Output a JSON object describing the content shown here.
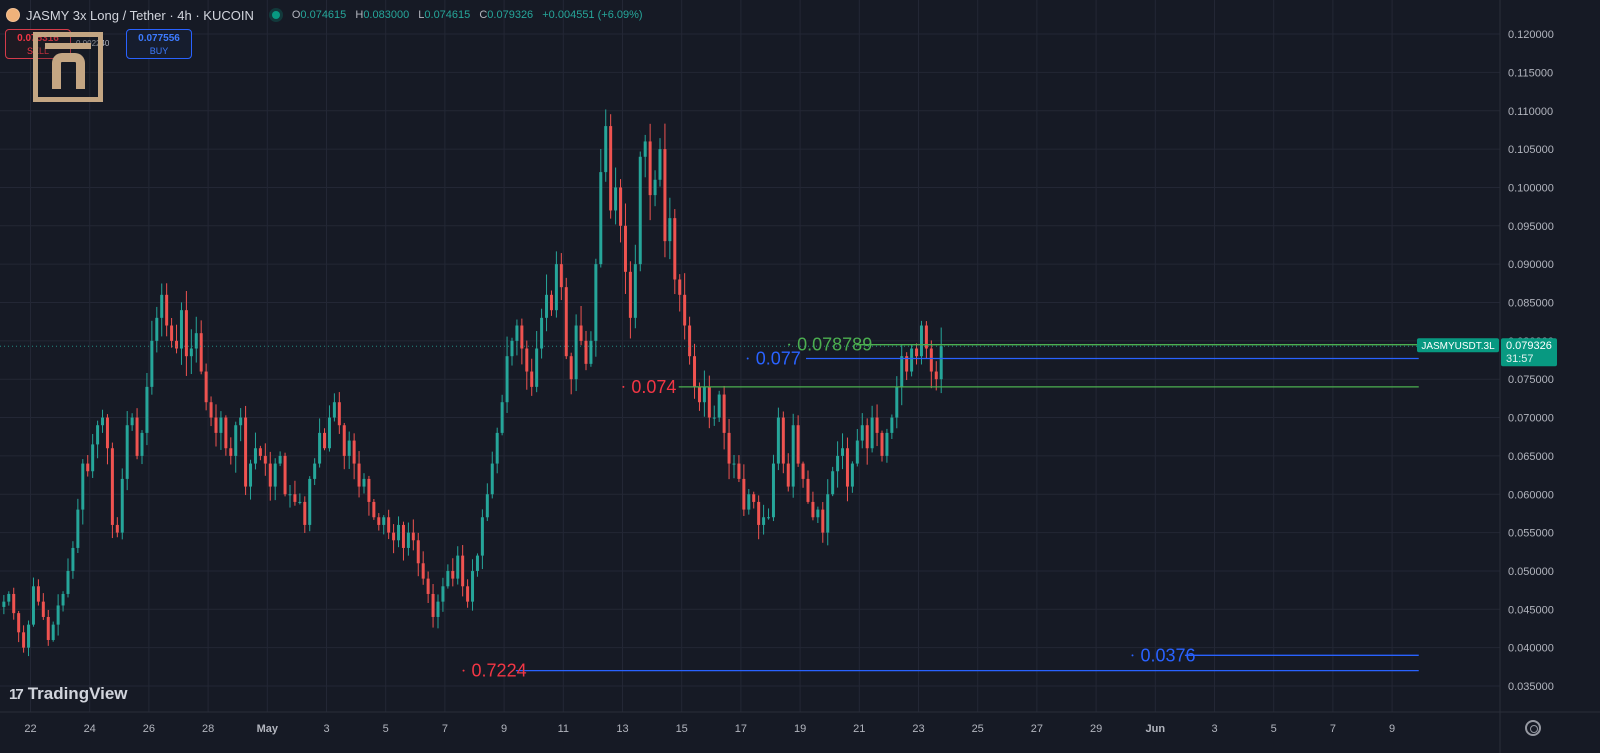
{
  "header": {
    "symbol": "JASMY 3x Long / Tether · 4h · KUCOIN",
    "ohlc": {
      "o_label": "O",
      "o": "0.074615",
      "h_label": "H",
      "h": "0.083000",
      "l_label": "L",
      "l": "0.074615",
      "c_label": "C",
      "c": "0.079326",
      "change": "+0.004551 (+6.09%)"
    }
  },
  "trade": {
    "sell_price": "0.075316",
    "sell_label": "SELL",
    "spread": "0.002240",
    "buy_price": "0.077556",
    "buy_label": "BUY"
  },
  "branding": {
    "tv_mark": "17",
    "tv_name": "TradingView"
  },
  "price_tag": {
    "symbol": "JASMYUSDT.3L",
    "price": "0.079326",
    "countdown": "31:57"
  },
  "colors": {
    "background": "#161a25",
    "up": "#26a69a",
    "down": "#ef5350",
    "level_green": "#4caf50",
    "level_blue": "#2962ff",
    "label_red": "#f23645"
  },
  "chart_data": {
    "type": "candlestick",
    "timeframe": "4h",
    "ylim": [
      0.032,
      0.122
    ],
    "y_ticks": [
      "0.035000",
      "0.040000",
      "0.045000",
      "0.050000",
      "0.055000",
      "0.060000",
      "0.065000",
      "0.070000",
      "0.075000",
      "0.080000",
      "0.085000",
      "0.090000",
      "0.095000",
      "0.100000",
      "0.105000",
      "0.110000",
      "0.115000",
      "0.120000"
    ],
    "x_ticks": [
      {
        "label": "22",
        "day": 0
      },
      {
        "label": "24",
        "day": 2
      },
      {
        "label": "26",
        "day": 4
      },
      {
        "label": "28",
        "day": 6
      },
      {
        "label": "May",
        "day": 8
      },
      {
        "label": "3",
        "day": 10
      },
      {
        "label": "5",
        "day": 12
      },
      {
        "label": "7",
        "day": 14
      },
      {
        "label": "9",
        "day": 16
      },
      {
        "label": "11",
        "day": 18
      },
      {
        "label": "13",
        "day": 20
      },
      {
        "label": "15",
        "day": 22
      },
      {
        "label": "17",
        "day": 24
      },
      {
        "label": "19",
        "day": 26
      },
      {
        "label": "21",
        "day": 28
      },
      {
        "label": "23",
        "day": 30
      },
      {
        "label": "25",
        "day": 32
      },
      {
        "label": "27",
        "day": 34
      },
      {
        "label": "29",
        "day": 36
      },
      {
        "label": "Jun",
        "day": 38
      },
      {
        "label": "3",
        "day": 40
      },
      {
        "label": "5",
        "day": 42
      },
      {
        "label": "7",
        "day": 44
      },
      {
        "label": "9",
        "day": 46
      }
    ],
    "bold_x_labels": [
      "May",
      "Jun"
    ],
    "start_day_offset": -0.9,
    "candles_per_day": 6,
    "closes": [
      0.046,
      0.047,
      0.0445,
      0.042,
      0.04,
      0.043,
      0.048,
      0.046,
      0.044,
      0.041,
      0.043,
      0.0455,
      0.047,
      0.05,
      0.053,
      0.058,
      0.064,
      0.063,
      0.0665,
      0.069,
      0.07,
      0.066,
      0.056,
      0.055,
      0.062,
      0.069,
      0.07,
      0.065,
      0.068,
      0.074,
      0.08,
      0.083,
      0.086,
      0.082,
      0.08,
      0.079,
      0.084,
      0.078,
      0.079,
      0.081,
      0.076,
      0.072,
      0.07,
      0.068,
      0.07,
      0.066,
      0.065,
      0.069,
      0.07,
      0.061,
      0.064,
      0.066,
      0.065,
      0.064,
      0.061,
      0.064,
      0.065,
      0.06,
      0.06,
      0.059,
      0.059,
      0.056,
      0.062,
      0.064,
      0.068,
      0.066,
      0.07,
      0.072,
      0.069,
      0.065,
      0.067,
      0.064,
      0.061,
      0.062,
      0.059,
      0.057,
      0.056,
      0.057,
      0.055,
      0.054,
      0.056,
      0.053,
      0.055,
      0.054,
      0.051,
      0.049,
      0.047,
      0.044,
      0.046,
      0.048,
      0.05,
      0.049,
      0.052,
      0.048,
      0.046,
      0.05,
      0.052,
      0.057,
      0.06,
      0.064,
      0.068,
      0.072,
      0.078,
      0.08,
      0.082,
      0.079,
      0.076,
      0.074,
      0.079,
      0.083,
      0.086,
      0.084,
      0.09,
      0.087,
      0.078,
      0.075,
      0.082,
      0.08,
      0.077,
      0.08,
      0.09,
      0.102,
      0.108,
      0.097,
      0.1,
      0.095,
      0.089,
      0.083,
      0.09,
      0.104,
      0.106,
      0.099,
      0.101,
      0.105,
      0.093,
      0.096,
      0.088,
      0.086,
      0.082,
      0.078,
      0.074,
      0.072,
      0.074,
      0.07,
      0.07,
      0.073,
      0.068,
      0.064,
      0.064,
      0.062,
      0.058,
      0.06,
      0.059,
      0.056,
      0.057,
      0.057,
      0.064,
      0.07,
      0.064,
      0.061,
      0.069,
      0.064,
      0.062,
      0.059,
      0.057,
      0.058,
      0.055,
      0.06,
      0.063,
      0.065,
      0.066,
      0.061,
      0.064,
      0.067,
      0.069,
      0.066,
      0.07,
      0.068,
      0.065,
      0.068,
      0.07,
      0.074,
      0.078,
      0.076,
      0.079,
      0.078,
      0.082,
      0.079,
      0.076,
      0.075,
      0.0793
    ],
    "horizontal_levels": [
      {
        "label": "0.078789",
        "price": 0.0795,
        "color": "#4caf50",
        "label_day": 25.9,
        "line_from_day": 27.9,
        "line_to_day": 46.9
      },
      {
        "label": "0.077",
        "price": 0.0777,
        "color": "#2962ff",
        "label_day": 24.5,
        "line_from_day": 26.2,
        "line_to_day": 46.9
      },
      {
        "label": "0.074",
        "price": 0.074,
        "color": "#f23645",
        "line_color": "#4caf50",
        "label_day": 20.3,
        "line_from_day": 21.9,
        "line_to_day": 46.9
      },
      {
        "label": "0.0376",
        "price": 0.039,
        "color": "#2962ff",
        "label_day": 37.5,
        "line_from_day": 39.0,
        "line_to_day": 46.9
      },
      {
        "label": "0.7224",
        "price": 0.037,
        "color": "#f23645",
        "line_color": "#2962ff",
        "label_day": 14.9,
        "line_from_day": 16.4,
        "line_to_day": 46.9
      }
    ]
  }
}
